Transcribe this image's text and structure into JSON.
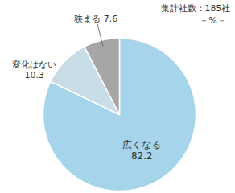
{
  "chart_data": {
    "type": "pie",
    "categories": [
      "広くなる",
      "変化はない",
      "狭まる"
    ],
    "values": [
      82.2,
      10.3,
      7.6
    ],
    "colors": [
      "#a6d4eb",
      "#c9dde7",
      "#a6a6a6"
    ],
    "data_labels": true,
    "annotations": [
      "集計社数：185社",
      "－%－"
    ]
  }
}
